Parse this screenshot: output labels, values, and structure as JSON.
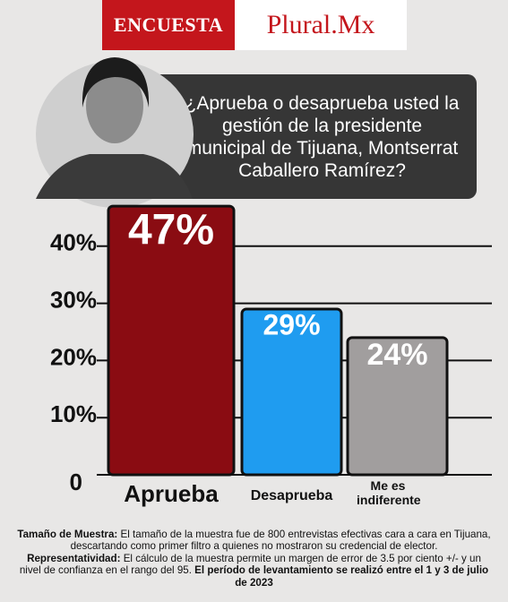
{
  "header": {
    "brand_left": "ENCUESTA",
    "brand_right": "Plural.Mx"
  },
  "chart_data": {
    "type": "bar",
    "title": "¿Aprueba o desaprueba usted la gestión de la presidente municipal de Tijuana, Montserrat Caballero Ramírez?",
    "categories": [
      "Aprueba",
      "Desaprueba",
      "Me es indiferente"
    ],
    "values": [
      47,
      29,
      24
    ],
    "value_labels": [
      "47%",
      "29%",
      "24%"
    ],
    "colors": [
      "#8a0c12",
      "#1f9cf0",
      "#a19e9e"
    ],
    "ylim": [
      0,
      50
    ],
    "yticks": [
      0,
      {
        "value": 10,
        "label": "10%"
      },
      {
        "value": 20,
        "label": "20%"
      },
      {
        "value": 30,
        "label": "30%"
      },
      {
        "value": 40,
        "label": "40%"
      }
    ],
    "grid": true
  },
  "notes": [
    {
      "label": "Tamaño de Muestra:",
      "text": "El tamaño de la muestra fue de 800 entrevistas efectivas cara a cara en Tijuana, descartando como primer filtro a quienes no mostraron su credencial de elector."
    },
    {
      "label": "Representatividad:",
      "text": "El cálculo de la muestra permite un margen de error de 3.5 por ciento +/- y un nivel de confianza en el rango del 95.",
      "emphasis": "El período de levantamiento se realizó entre el 1 y 3 de julio de 2023"
    }
  ]
}
